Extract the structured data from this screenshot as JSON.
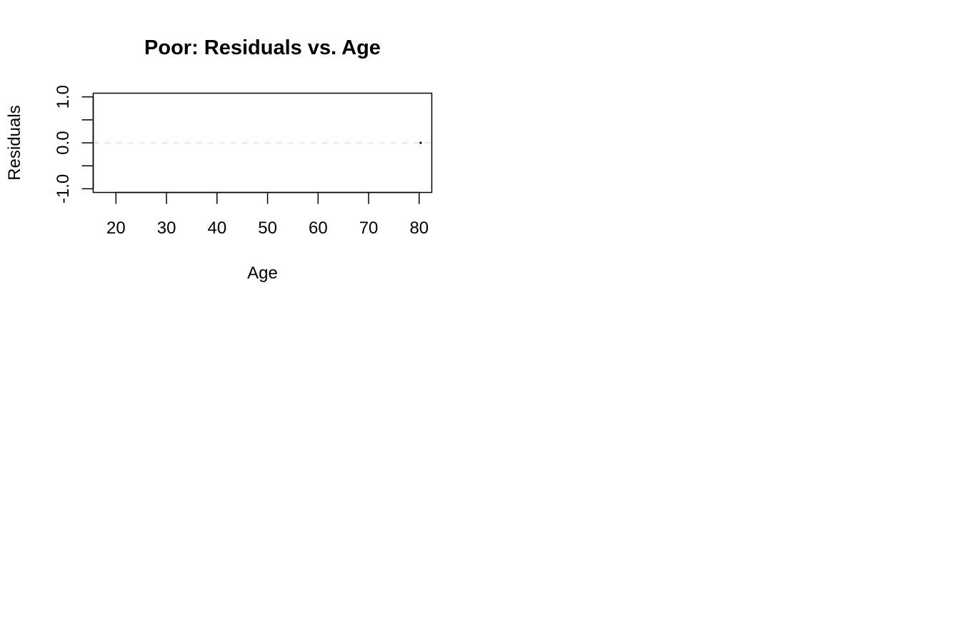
{
  "chart_data": {
    "type": "scatter",
    "title": "Poor: Residuals vs. Age",
    "xlabel": "Age",
    "ylabel": "Residuals",
    "xlim": [
      15.5,
      82.5
    ],
    "ylim": [
      -1.08,
      1.08
    ],
    "x_ticks": [
      20,
      30,
      40,
      50,
      60,
      70,
      80
    ],
    "x_tick_labels": [
      "20",
      "30",
      "40",
      "50",
      "60",
      "70",
      "80"
    ],
    "y_ticks": [
      -1.0,
      -0.5,
      0.0,
      0.5,
      1.0
    ],
    "y_tick_labels": [
      "-1.0",
      "",
      "0.0",
      "",
      "1.0"
    ],
    "reference_line": {
      "y": 0,
      "style": "dashed",
      "color": "#d9d9d9"
    },
    "points": [
      {
        "x": 80.3,
        "y": 0.0
      }
    ],
    "grid": false,
    "legend": "none"
  }
}
